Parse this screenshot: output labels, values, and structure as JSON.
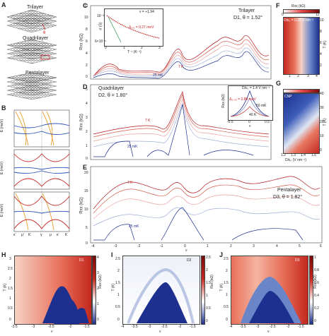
{
  "panels": {
    "A": {
      "letter": "A",
      "labels": [
        "Trilayer",
        "Quadrilayer",
        "Pentalayer"
      ],
      "theta_symbol": "θ"
    },
    "B": {
      "letter": "B",
      "ylabel": "E (meV)",
      "yticks": [
        "100",
        "50",
        "0",
        "-50",
        "-100"
      ],
      "xticks": [
        "κ'",
        "μ'",
        "K",
        "γ",
        "μ",
        "κ'",
        "K"
      ]
    },
    "C": {
      "letter": "C",
      "ylabel": "Rxx (kΩ)",
      "name": "Trilayer",
      "device": "D1, θ = 1.52°",
      "temp_high": "7 K",
      "temp_low": "25 mK",
      "yticks": [
        "0",
        "2",
        "4",
        "6",
        "8",
        "10",
        "12"
      ],
      "inset": {
        "nu": "ν = +1.94",
        "delta": "Δ₁.₉ = 0.27 meV",
        "ylabel": "σ (S)",
        "xlabel": "T⁻¹ (K⁻¹)",
        "yticks": [
          "10⁻³",
          "6×10⁻⁴"
        ],
        "xticks": [
          "0",
          "1",
          "2",
          "3"
        ]
      }
    },
    "D": {
      "letter": "D",
      "ylabel": "Rxx (kΩ)",
      "name": "Quadrilayer",
      "device": "D2, θ = 1.80°",
      "temp_high": "7 K",
      "temp_low": "25 mK",
      "yticks": [
        "0",
        "1",
        "2",
        "3",
        "4",
        "5"
      ],
      "inset": {
        "field": "D/ε₀ = 1.4 V nm⁻¹",
        "delta": "Δ₂.₃₅ = 3.88 meV",
        "ylabel": "Rxx (kΩ)",
        "xlabel": "ν",
        "t_low": "50 mK",
        "t_high": "40 K",
        "yticks": [
          "20",
          "15",
          "10",
          "5",
          "0"
        ],
        "xticks": [
          "-0.5",
          "0",
          "0.5"
        ]
      }
    },
    "E": {
      "letter": "E",
      "ylabel": "Rxx (kΩ)",
      "name": "Pentalayer",
      "device": "D3, θ = 1.82°",
      "temp_high": "7 K",
      "temp_low": "25 mK",
      "yticks": [
        "0",
        "5",
        "10",
        "15",
        "20"
      ],
      "xticks": [
        "-4",
        "-3",
        "-2",
        "-1",
        "0",
        "1",
        "2",
        "3",
        "4",
        "5",
        "6"
      ],
      "xlabel": "ν"
    },
    "F": {
      "letter": "F",
      "title": "Rxx (kΩ)",
      "cbar": [
        "0",
        "12"
      ],
      "field": "D/ε₀ = 0.26 V nm⁻¹",
      "xticks": [
        "1",
        "2",
        "3",
        "4"
      ],
      "ylabel": "T (K)",
      "yticks": [
        "2",
        "4",
        "6",
        "8",
        "10"
      ]
    },
    "G": {
      "letter": "G",
      "label": "CNP",
      "ylabel": "T (K)",
      "xlabel": "D/ε₀ (V nm⁻¹)",
      "yticks": [
        "0",
        "10",
        "20",
        "30",
        "40"
      ],
      "xticks": [
        "1.2",
        "1.3",
        "1.4",
        "1.5"
      ]
    },
    "H": {
      "letter": "H",
      "device": "D1",
      "ylabel": "T (K)",
      "cbar_label": "Rxx (kΩ)",
      "yticks": [
        "0",
        "0.5",
        "1",
        "1.5",
        "2",
        "2.5",
        "3"
      ],
      "xticks": [
        "-3.5",
        "-3",
        "-2.5",
        "-2",
        "-1.5"
      ],
      "cbar": [
        "0",
        "1",
        "2",
        "3",
        "4"
      ],
      "xlabel": "ν"
    },
    "I": {
      "letter": "I",
      "device": "D2",
      "ylabel": "T (K)",
      "cbar_label": "Rxx (kΩ)",
      "yticks": [
        "0",
        "0.5",
        "1",
        "1.5",
        "2",
        "2.5"
      ],
      "xticks": [
        "-4",
        "-3.5",
        "-3",
        "-2.5",
        "-2",
        "-1.5"
      ],
      "cbar": [
        "0",
        "0.5",
        "1",
        "1.5",
        "2",
        "2.5"
      ],
      "xlabel": "ν"
    },
    "J": {
      "letter": "J",
      "device": "D3",
      "ylabel": "T (K)",
      "cbar_label": "Rxx (kΩ)",
      "yticks": [
        "0",
        "0.5",
        "1",
        "1.5",
        "2",
        "2.5"
      ],
      "xticks": [
        "-4",
        "-3.5",
        "-3",
        "-2.5",
        "-2",
        "-1.5"
      ],
      "cbar": [
        "0",
        "0.2",
        "0.4",
        "0.6",
        "0.8",
        "1"
      ],
      "xlabel": "ν"
    }
  },
  "colors": {
    "hot": "#b0191e",
    "cold": "#1d2f8f",
    "grid": "#cccccc"
  }
}
